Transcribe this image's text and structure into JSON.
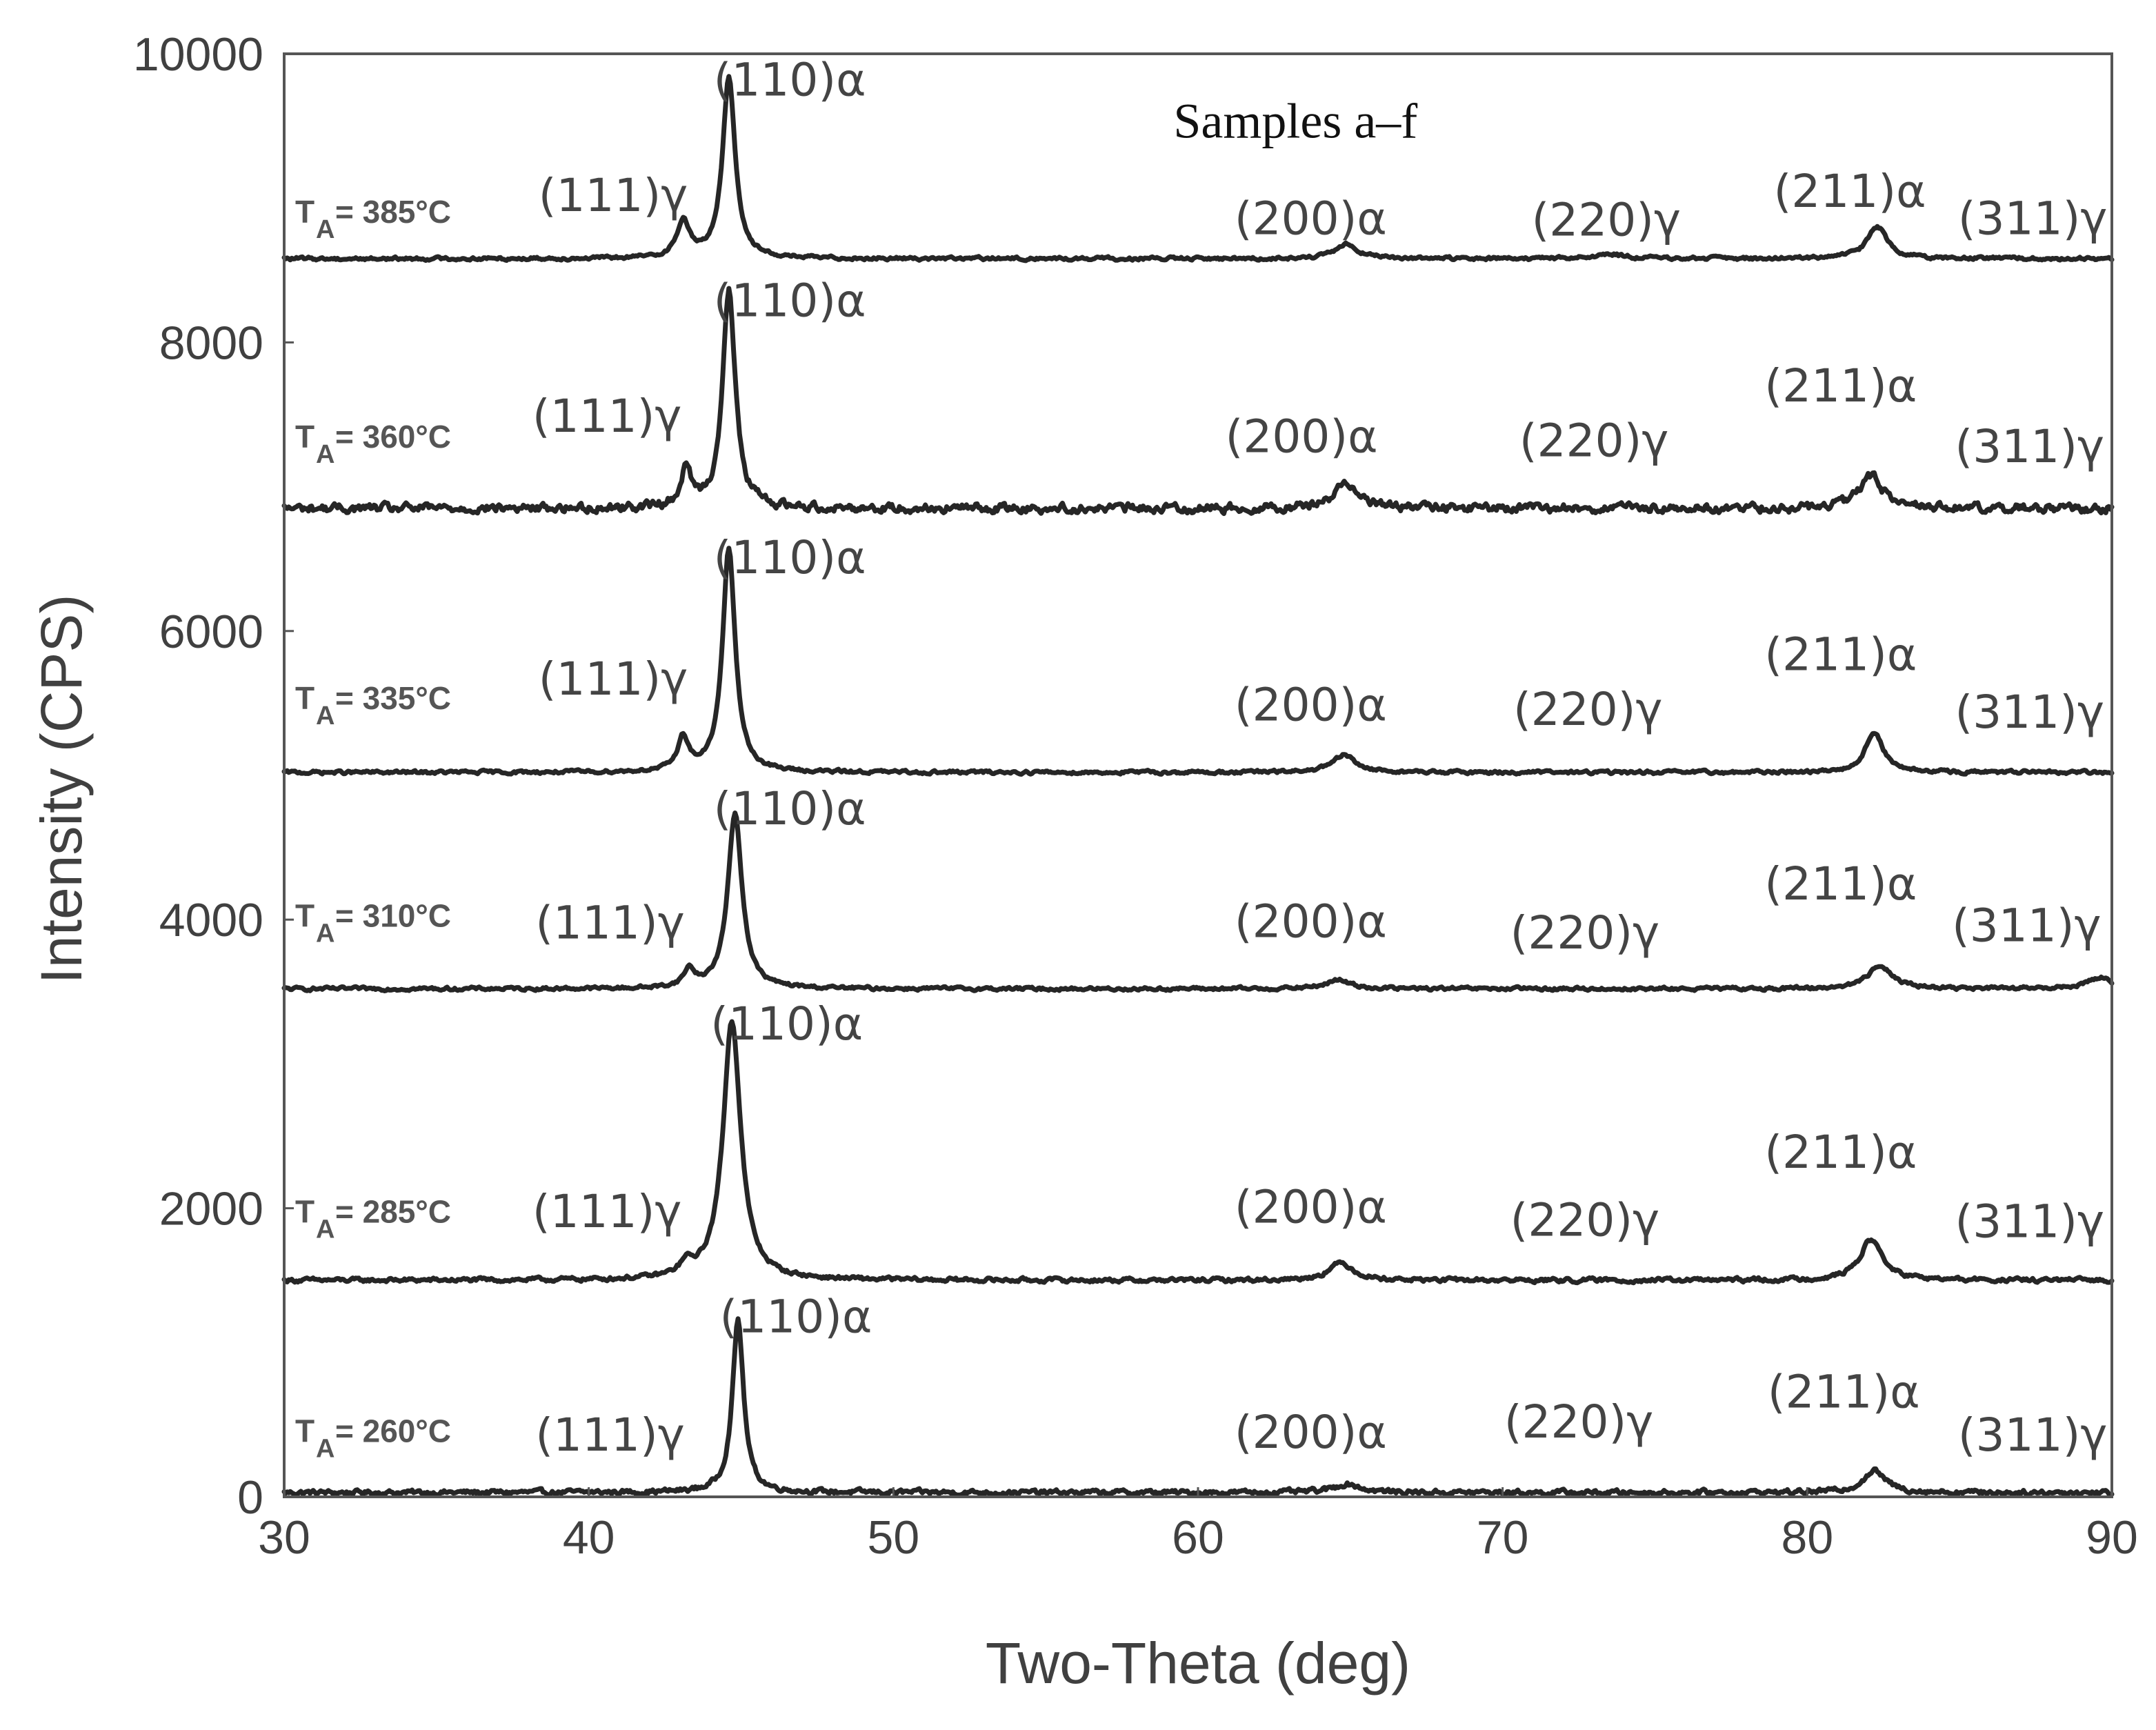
{
  "chart_data": {
    "type": "line",
    "title": "Samples a–f",
    "xlabel": "Two-Theta (deg)",
    "ylabel": "Intensity (CPS)",
    "xlim": [
      30,
      90
    ],
    "ylim": [
      0,
      10000
    ],
    "xticks": [
      "30",
      "40",
      "50",
      "60",
      "70",
      "80",
      "90"
    ],
    "yticks": [
      "0",
      "2000",
      "4000",
      "6000",
      "8000",
      "10000"
    ],
    "grid": false,
    "legend": "none",
    "series": [
      {
        "label_main": "T",
        "label_sub": "A",
        "label_rest": " = 260°C",
        "baseline": 30,
        "noise": 30,
        "peaks": [
          {
            "x": 44.9,
            "y": 1200,
            "w": 0.22
          },
          {
            "x": 64.9,
            "y": 60,
            "w": 0.5
          },
          {
            "x": 82.2,
            "y": 150,
            "w": 0.45
          }
        ],
        "annotations": [
          {
            "text": "(110)α",
            "x": 46.8,
            "y": 1140
          },
          {
            "text": "(111)γ",
            "x": 40.7,
            "y": 320
          },
          {
            "text": "(200)α",
            "x": 63.7,
            "y": 340
          },
          {
            "text": "(220)γ",
            "x": 72.5,
            "y": 410
          },
          {
            "text": "(211)α",
            "x": 81.2,
            "y": 620
          },
          {
            "text": "(311)γ",
            "x": 87.4,
            "y": 320
          }
        ],
        "label_y": 380
      },
      {
        "label_main": "T",
        "label_sub": "A",
        "label_rest": " = 285°C",
        "baseline": 1500,
        "noise": 25,
        "peaks": [
          {
            "x": 43.2,
            "y": 80,
            "w": 0.25
          },
          {
            "x": 44.7,
            "y": 1800,
            "w": 0.35
          },
          {
            "x": 64.7,
            "y": 120,
            "w": 0.5
          },
          {
            "x": 82.1,
            "y": 280,
            "w": 0.45
          }
        ],
        "annotations": [
          {
            "text": "(110)α",
            "x": 46.5,
            "y": 3170
          },
          {
            "text": "(111)γ",
            "x": 40.6,
            "y": 1870
          },
          {
            "text": "(200)α",
            "x": 63.7,
            "y": 1900
          },
          {
            "text": "(220)γ",
            "x": 72.7,
            "y": 1810
          },
          {
            "text": "(211)α",
            "x": 81.1,
            "y": 2280
          },
          {
            "text": "(311)γ",
            "x": 87.3,
            "y": 1800
          }
        ],
        "label_y": 1900
      },
      {
        "label_main": "T",
        "label_sub": "A",
        "label_rest": " = 310°C",
        "baseline": 3520,
        "noise": 20,
        "peaks": [
          {
            "x": 43.3,
            "y": 120,
            "w": 0.22
          },
          {
            "x": 44.8,
            "y": 1220,
            "w": 0.28
          },
          {
            "x": 64.6,
            "y": 60,
            "w": 0.5
          },
          {
            "x": 82.4,
            "y": 160,
            "w": 0.5
          },
          {
            "x": 89.6,
            "y": 80,
            "w": 0.5
          }
        ],
        "annotations": [
          {
            "text": "(110)α",
            "x": 46.6,
            "y": 4660
          },
          {
            "text": "(111)γ",
            "x": 40.7,
            "y": 3870
          },
          {
            "text": "(200)α",
            "x": 63.7,
            "y": 3880
          },
          {
            "text": "(220)γ",
            "x": 72.7,
            "y": 3800
          },
          {
            "text": "(211)α",
            "x": 81.1,
            "y": 4140
          },
          {
            "text": "(311)γ",
            "x": 87.2,
            "y": 3850
          }
        ],
        "label_y": 3950
      },
      {
        "label_main": "T",
        "label_sub": "A",
        "label_rest": " = 335°C",
        "baseline": 5020,
        "noise": 20,
        "peaks": [
          {
            "x": 43.1,
            "y": 230,
            "w": 0.22
          },
          {
            "x": 44.6,
            "y": 1550,
            "w": 0.25
          },
          {
            "x": 64.8,
            "y": 120,
            "w": 0.45
          },
          {
            "x": 82.2,
            "y": 280,
            "w": 0.35
          }
        ],
        "annotations": [
          {
            "text": "(110)α",
            "x": 46.6,
            "y": 6400
          },
          {
            "text": "(111)γ",
            "x": 40.8,
            "y": 5560
          },
          {
            "text": "(200)α",
            "x": 63.7,
            "y": 5380
          },
          {
            "text": "(220)γ",
            "x": 72.8,
            "y": 5350
          },
          {
            "text": "(211)α",
            "x": 81.1,
            "y": 5730
          },
          {
            "text": "(311)γ",
            "x": 87.3,
            "y": 5330
          }
        ],
        "label_y": 5460
      },
      {
        "label_main": "T",
        "label_sub": "A",
        "label_rest": " = 360°C",
        "baseline": 6850,
        "noise": 55,
        "peaks": [
          {
            "x": 43.2,
            "y": 250,
            "w": 0.22
          },
          {
            "x": 44.6,
            "y": 1500,
            "w": 0.25
          },
          {
            "x": 64.9,
            "y": 180,
            "w": 0.5
          },
          {
            "x": 82.1,
            "y": 230,
            "w": 0.45
          }
        ],
        "annotations": [
          {
            "text": "(110)α",
            "x": 46.6,
            "y": 8180
          },
          {
            "text": "(111)γ",
            "x": 40.6,
            "y": 7380
          },
          {
            "text": "(200)α",
            "x": 63.4,
            "y": 7240
          },
          {
            "text": "(220)γ",
            "x": 73.0,
            "y": 7210
          },
          {
            "text": "(211)α",
            "x": 81.1,
            "y": 7590
          },
          {
            "text": "(311)γ",
            "x": 87.3,
            "y": 7170
          }
        ],
        "label_y": 7270
      },
      {
        "label_main": "T",
        "label_sub": "A",
        "label_rest": " = 385°C",
        "baseline": 8580,
        "noise": 20,
        "peaks": [
          {
            "x": 43.1,
            "y": 250,
            "w": 0.25
          },
          {
            "x": 44.6,
            "y": 1250,
            "w": 0.25
          },
          {
            "x": 64.9,
            "y": 100,
            "w": 0.45
          },
          {
            "x": 73.5,
            "y": 30,
            "w": 0.6
          },
          {
            "x": 82.3,
            "y": 220,
            "w": 0.4
          }
        ],
        "annotations": [
          {
            "text": "(110)α",
            "x": 46.6,
            "y": 9710
          },
          {
            "text": "(111)γ",
            "x": 40.8,
            "y": 8910
          },
          {
            "text": "(200)α",
            "x": 63.7,
            "y": 8750
          },
          {
            "text": "(220)γ",
            "x": 73.4,
            "y": 8740
          },
          {
            "text": "(211)α",
            "x": 81.4,
            "y": 8940
          },
          {
            "text": "(311)γ",
            "x": 87.4,
            "y": 8750
          }
        ],
        "label_y": 8830
      }
    ]
  }
}
